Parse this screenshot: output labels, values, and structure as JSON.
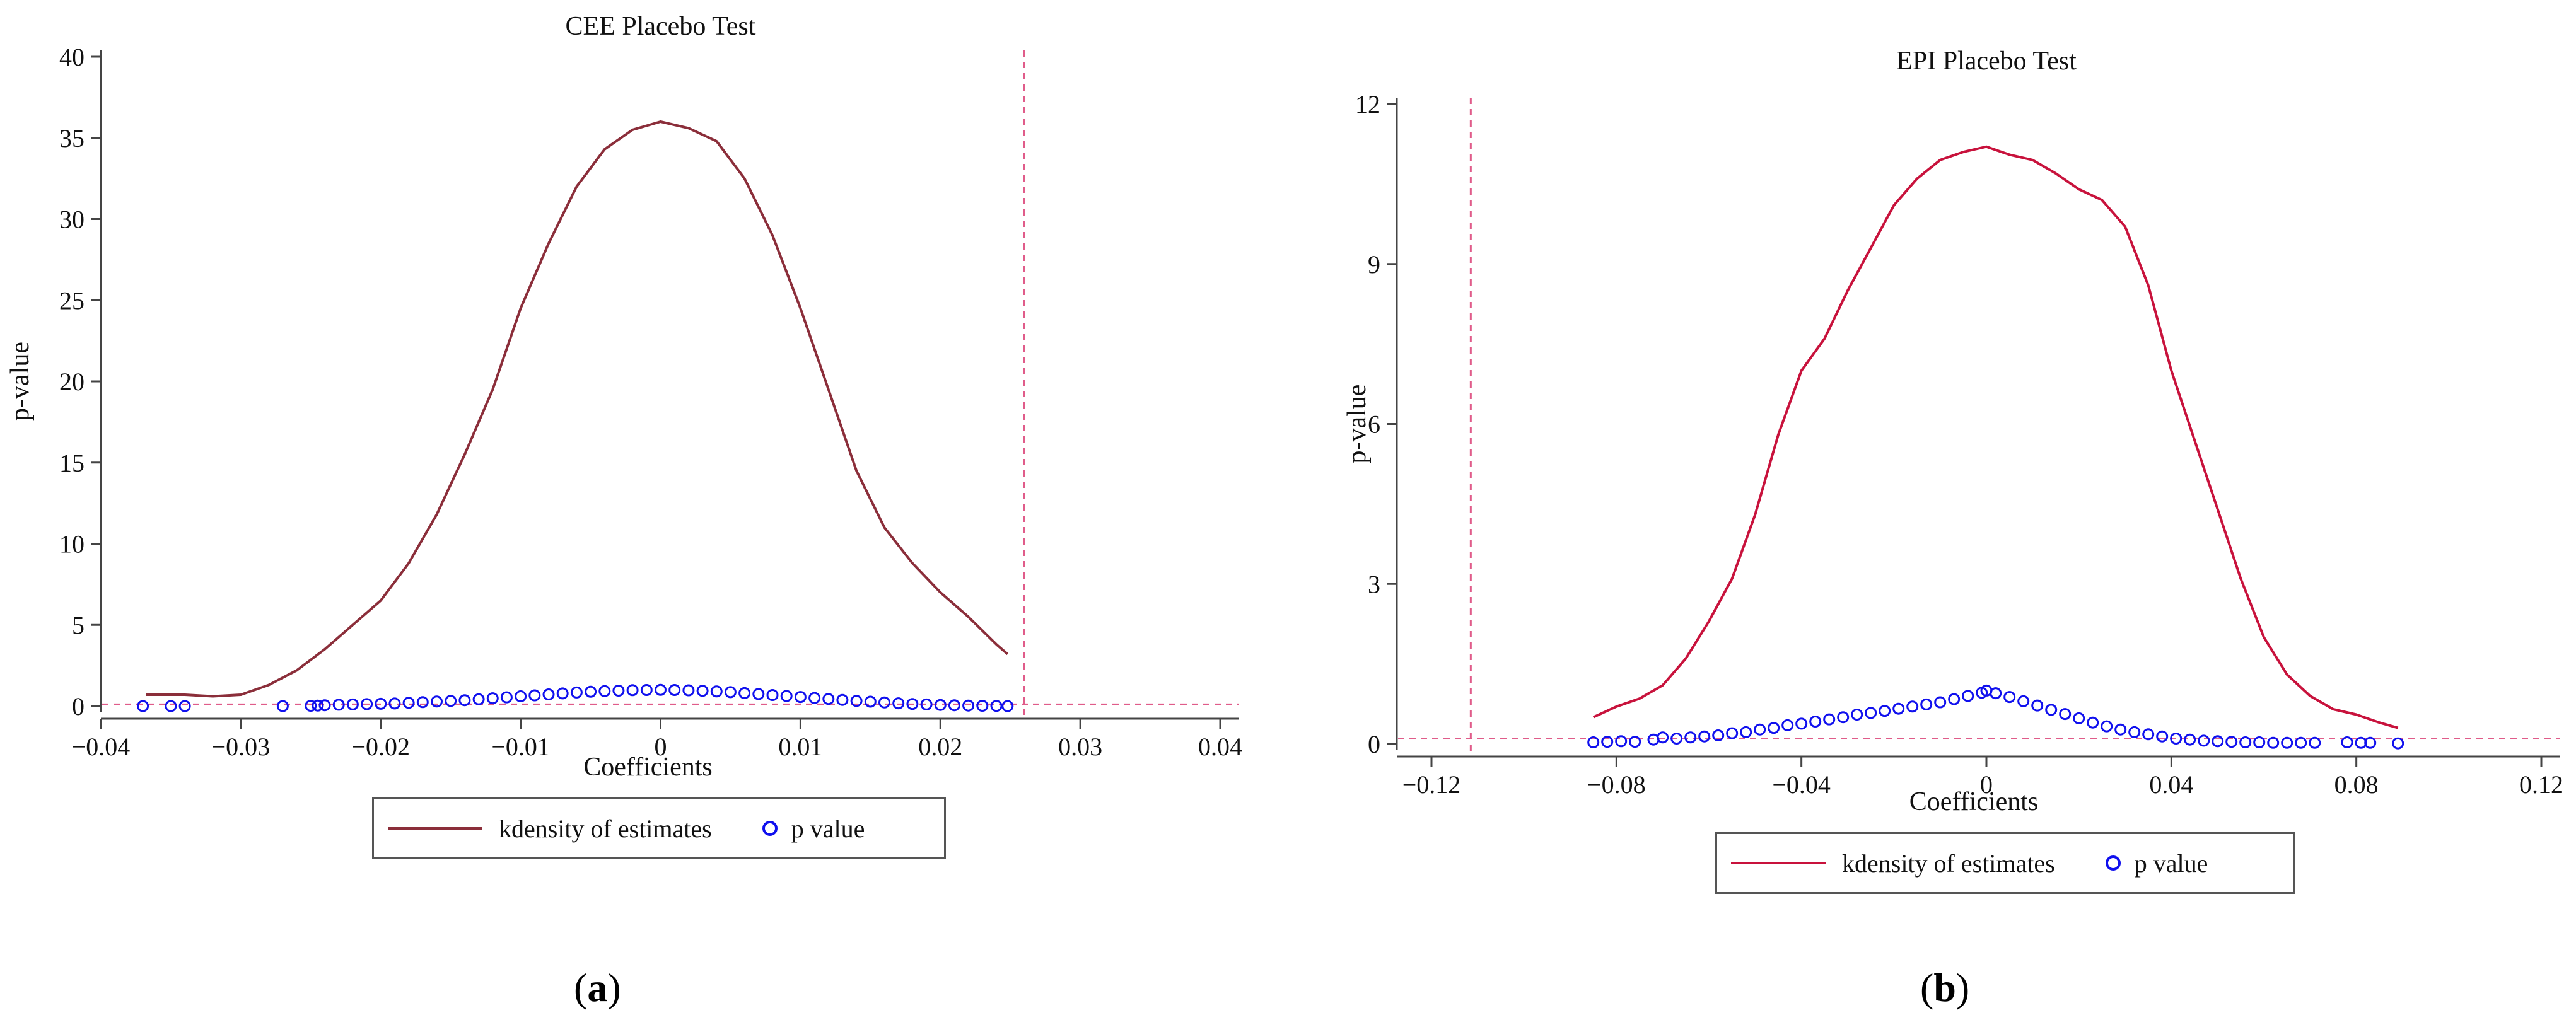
{
  "colors": {
    "kdensity_a": "#8B2E3A",
    "kdensity_b": "#C8123C",
    "pvalue": "#1010EE",
    "refline": "#E05C8A",
    "axis": "#444444"
  },
  "panels": {
    "a": {
      "label": "a",
      "legend": {
        "kdensity": "kdensity of estimates",
        "pvalue": "p value"
      }
    },
    "b": {
      "label": "b",
      "legend": {
        "kdensity": "kdensity of estimates",
        "pvalue": "p value"
      }
    }
  },
  "chart_data": [
    {
      "type": "line",
      "title": "CEE Placebo Test",
      "xlabel": "Coefficients",
      "ylabel": "p-value",
      "xlim": [
        -0.04,
        0.04
      ],
      "ylim": [
        0,
        40
      ],
      "xticks": [
        -0.04,
        -0.03,
        -0.02,
        -0.01,
        0,
        0.01,
        0.02,
        0.03,
        0.04
      ],
      "xtick_labels": [
        "−0.04",
        "−0.03",
        "−0.02",
        "−0.01",
        "0",
        "0.01",
        "0.02",
        "0.03",
        "0.04"
      ],
      "yticks": [
        0,
        5,
        10,
        15,
        20,
        25,
        30,
        35,
        40
      ],
      "ytick_labels": [
        "0",
        "5",
        "10",
        "15",
        "20",
        "25",
        "30",
        "35",
        "40"
      ],
      "reference_lines": {
        "vertical_x": 0.026,
        "horizontal_y": 0.1
      },
      "series": [
        {
          "name": "kdensity of estimates",
          "kind": "line",
          "x": [
            -0.0368,
            -0.034,
            -0.032,
            -0.03,
            -0.028,
            -0.026,
            -0.024,
            -0.022,
            -0.02,
            -0.018,
            -0.016,
            -0.014,
            -0.012,
            -0.01,
            -0.008,
            -0.006,
            -0.004,
            -0.002,
            0.0,
            0.002,
            0.004,
            0.006,
            0.008,
            0.01,
            0.012,
            0.014,
            0.016,
            0.018,
            0.02,
            0.022,
            0.024,
            0.0248
          ],
          "y": [
            0.7,
            0.7,
            0.6,
            0.7,
            1.3,
            2.2,
            3.5,
            5.0,
            6.5,
            8.8,
            11.8,
            15.5,
            19.5,
            24.5,
            28.5,
            32.0,
            34.3,
            35.5,
            36.0,
            35.6,
            34.8,
            32.5,
            29.0,
            24.5,
            19.5,
            14.5,
            11.0,
            8.8,
            7.0,
            5.5,
            3.8,
            3.2
          ]
        },
        {
          "name": "p value",
          "kind": "scatter",
          "x": [
            -0.037,
            -0.035,
            -0.034,
            -0.027,
            -0.025,
            -0.0245,
            -0.024,
            -0.023,
            -0.022,
            -0.021,
            -0.02,
            -0.019,
            -0.018,
            -0.017,
            -0.016,
            -0.015,
            -0.014,
            -0.013,
            -0.012,
            -0.011,
            -0.01,
            -0.009,
            -0.008,
            -0.007,
            -0.006,
            -0.005,
            -0.004,
            -0.003,
            -0.002,
            -0.001,
            0.0,
            0.001,
            0.002,
            0.003,
            0.004,
            0.005,
            0.006,
            0.007,
            0.008,
            0.009,
            0.01,
            0.011,
            0.012,
            0.013,
            0.014,
            0.015,
            0.016,
            0.017,
            0.018,
            0.019,
            0.02,
            0.021,
            0.022,
            0.023,
            0.024,
            0.0248
          ],
          "y": [
            0.0,
            0.0,
            0.0,
            0.0,
            0.02,
            0.03,
            0.05,
            0.08,
            0.1,
            0.12,
            0.14,
            0.16,
            0.2,
            0.24,
            0.28,
            0.32,
            0.36,
            0.42,
            0.48,
            0.54,
            0.6,
            0.66,
            0.72,
            0.78,
            0.84,
            0.88,
            0.92,
            0.95,
            0.98,
            0.99,
            1.0,
            0.99,
            0.97,
            0.94,
            0.9,
            0.86,
            0.8,
            0.74,
            0.68,
            0.62,
            0.56,
            0.5,
            0.44,
            0.38,
            0.32,
            0.27,
            0.22,
            0.17,
            0.13,
            0.1,
            0.07,
            0.05,
            0.03,
            0.02,
            0.01,
            0.0
          ]
        }
      ]
    },
    {
      "type": "line",
      "title": "EPI Placebo Test",
      "xlabel": "Coefficients",
      "ylabel": "p-value",
      "xlim": [
        -0.12,
        0.12
      ],
      "ylim": [
        0,
        12
      ],
      "xticks": [
        -0.12,
        -0.08,
        -0.04,
        0,
        0.04,
        0.08,
        0.12
      ],
      "xtick_labels": [
        "−0.12",
        "−0.08",
        "−0.04",
        "0",
        "0.04",
        "0.08",
        "0.12"
      ],
      "yticks": [
        0,
        3,
        6,
        9,
        12
      ],
      "ytick_labels": [
        "0",
        "3",
        "6",
        "9",
        "12"
      ],
      "reference_lines": {
        "vertical_x": -0.1115,
        "horizontal_y": 0.1
      },
      "series": [
        {
          "name": "kdensity of estimates",
          "kind": "line",
          "x": [
            -0.085,
            -0.08,
            -0.075,
            -0.07,
            -0.065,
            -0.06,
            -0.055,
            -0.05,
            -0.045,
            -0.04,
            -0.035,
            -0.03,
            -0.025,
            -0.02,
            -0.015,
            -0.01,
            -0.005,
            0.0,
            0.005,
            0.01,
            0.015,
            0.02,
            0.025,
            0.03,
            0.035,
            0.04,
            0.045,
            0.05,
            0.055,
            0.06,
            0.065,
            0.07,
            0.075,
            0.08,
            0.085,
            0.089
          ],
          "y": [
            0.5,
            0.7,
            0.85,
            1.1,
            1.6,
            2.3,
            3.1,
            4.3,
            5.8,
            7.0,
            7.6,
            8.5,
            9.3,
            10.1,
            10.6,
            10.95,
            11.1,
            11.2,
            11.05,
            10.95,
            10.7,
            10.4,
            10.2,
            9.7,
            8.6,
            7.0,
            5.7,
            4.4,
            3.1,
            2.0,
            1.3,
            0.9,
            0.65,
            0.55,
            0.4,
            0.3
          ]
        },
        {
          "name": "p value",
          "kind": "scatter",
          "x": [
            -0.085,
            -0.082,
            -0.079,
            -0.076,
            -0.072,
            -0.07,
            -0.067,
            -0.064,
            -0.061,
            -0.058,
            -0.055,
            -0.052,
            -0.049,
            -0.046,
            -0.043,
            -0.04,
            -0.037,
            -0.034,
            -0.031,
            -0.028,
            -0.025,
            -0.022,
            -0.019,
            -0.016,
            -0.013,
            -0.01,
            -0.007,
            -0.004,
            -0.001,
            0.0,
            0.002,
            0.005,
            0.008,
            0.011,
            0.014,
            0.017,
            0.02,
            0.023,
            0.026,
            0.029,
            0.032,
            0.035,
            0.038,
            0.041,
            0.044,
            0.047,
            0.05,
            0.053,
            0.056,
            0.059,
            0.062,
            0.065,
            0.068,
            0.071,
            0.078,
            0.081,
            0.083,
            0.089
          ],
          "y": [
            0.03,
            0.04,
            0.05,
            0.04,
            0.08,
            0.12,
            0.1,
            0.12,
            0.14,
            0.16,
            0.2,
            0.22,
            0.27,
            0.3,
            0.35,
            0.38,
            0.42,
            0.46,
            0.5,
            0.55,
            0.58,
            0.62,
            0.66,
            0.7,
            0.74,
            0.78,
            0.84,
            0.9,
            0.96,
            1.0,
            0.95,
            0.88,
            0.8,
            0.72,
            0.64,
            0.56,
            0.48,
            0.4,
            0.33,
            0.27,
            0.22,
            0.18,
            0.14,
            0.1,
            0.08,
            0.06,
            0.05,
            0.04,
            0.03,
            0.03,
            0.02,
            0.02,
            0.02,
            0.02,
            0.03,
            0.02,
            0.02,
            0.01
          ]
        }
      ]
    }
  ]
}
